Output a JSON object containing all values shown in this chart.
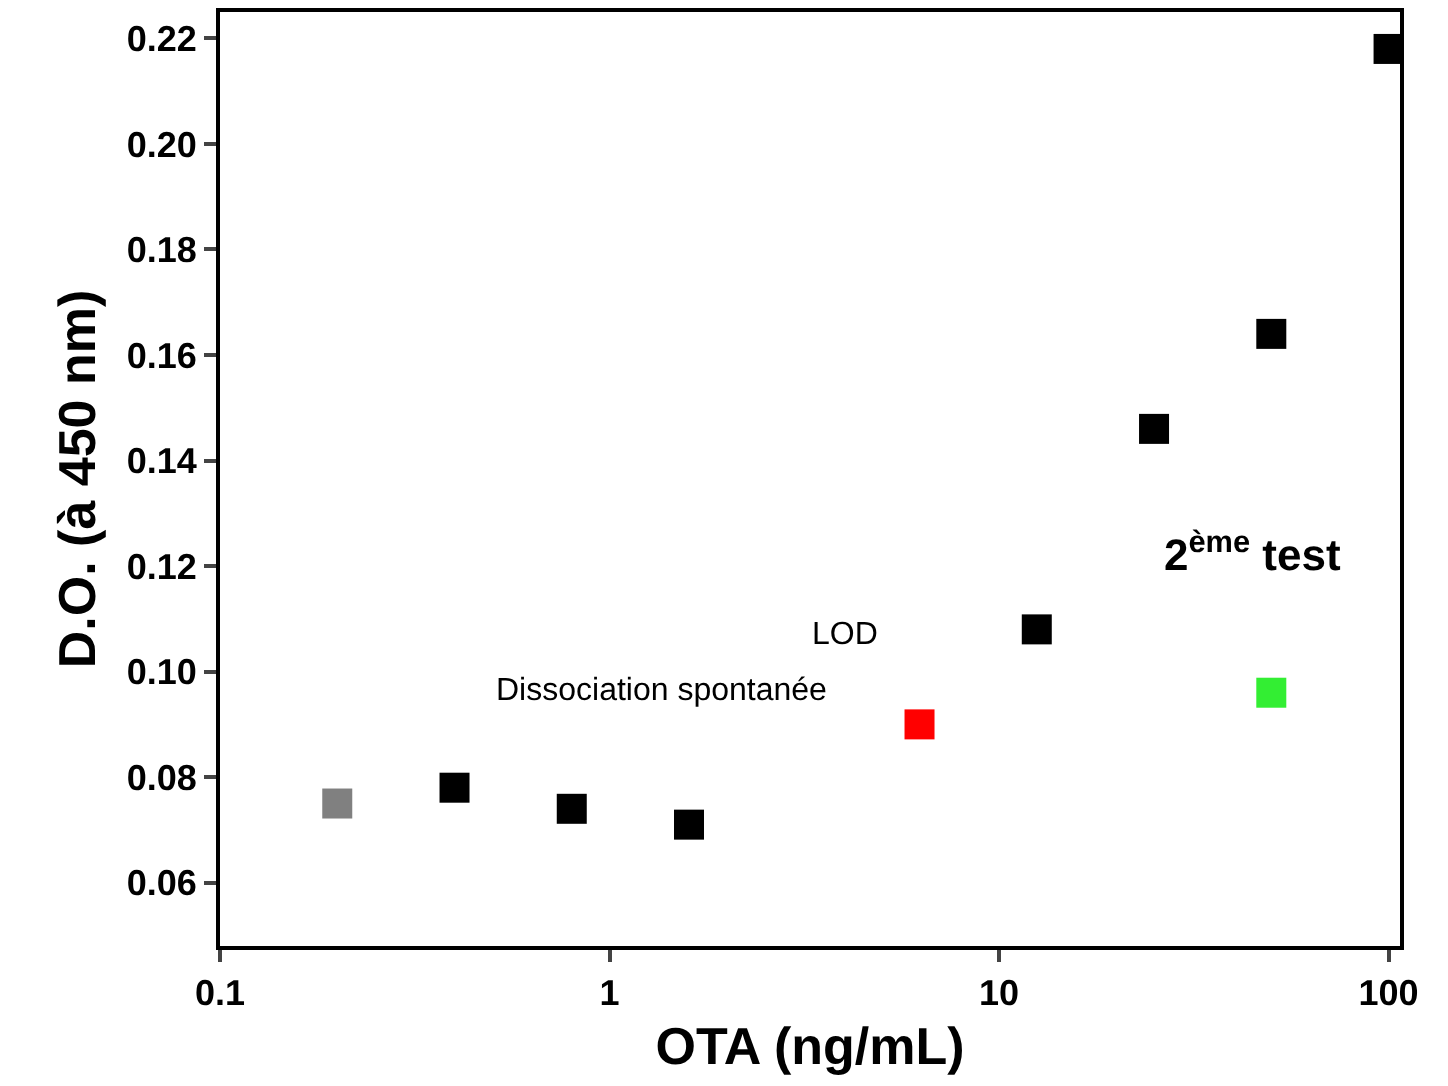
{
  "chart_data": {
    "type": "scatter",
    "xlabel": "OTA (ng/mL)",
    "ylabel": "D.O. (à 450 nm)",
    "x": [
      0.2,
      0.4,
      0.8,
      1.6,
      6.25,
      12.5,
      25,
      50,
      50,
      100
    ],
    "values": [
      0.075,
      0.078,
      0.074,
      0.071,
      0.09,
      0.108,
      0.146,
      0.164,
      0.096,
      0.218
    ],
    "colors": [
      "#808080",
      "#000000",
      "#000000",
      "#000000",
      "#ff0000",
      "#000000",
      "#000000",
      "#000000",
      "#33ee33",
      "#000000"
    ],
    "log": "x",
    "xlim": [
      0.1,
      107
    ],
    "ylim": [
      0.048,
      0.225
    ],
    "xticks": [
      0.1,
      1,
      10,
      100
    ],
    "yticks": [
      {
        "value": 0.06,
        "label": "0.06"
      },
      {
        "value": 0.08,
        "label": "0.08"
      },
      {
        "value": 0.1,
        "label": "0.10"
      },
      {
        "value": 0.12,
        "label": "0.12"
      },
      {
        "value": 0.14,
        "label": "0.14"
      },
      {
        "value": 0.16,
        "label": "0.16"
      },
      {
        "value": 0.18,
        "label": "0.18"
      },
      {
        "value": 0.2,
        "label": "0.20"
      },
      {
        "value": 0.22,
        "label": "0.22"
      }
    ],
    "annotations": [
      "Dissociation spontanée",
      "LOD",
      "2$^{ème}$ test"
    ],
    "marker": "square"
  }
}
